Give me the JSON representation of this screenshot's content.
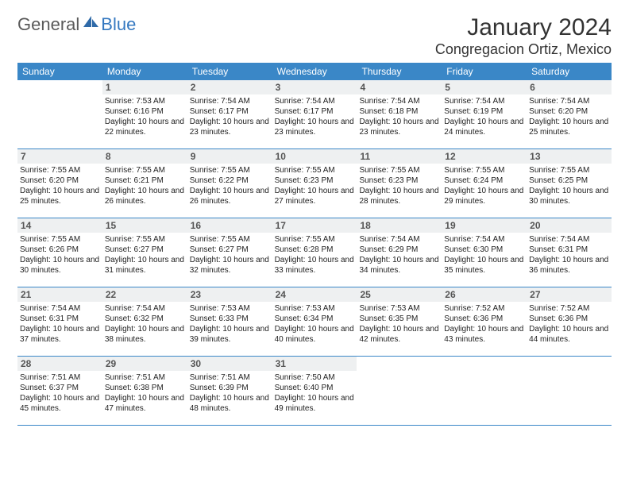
{
  "logo": {
    "general": "General",
    "blue": "Blue"
  },
  "title": "January 2024",
  "location": "Congregacion Ortiz, Mexico",
  "colors": {
    "header_blue": "#3a87c7",
    "band_gray": "#eef0f1",
    "logo_blue": "#3478c0",
    "logo_gray": "#5a5a5a"
  },
  "days_of_week": [
    "Sunday",
    "Monday",
    "Tuesday",
    "Wednesday",
    "Thursday",
    "Friday",
    "Saturday"
  ],
  "first_weekday_index": 1,
  "num_days": 31,
  "days": {
    "1": {
      "sunrise": "7:53 AM",
      "sunset": "6:16 PM",
      "daylight": "10 hours and 22 minutes."
    },
    "2": {
      "sunrise": "7:54 AM",
      "sunset": "6:17 PM",
      "daylight": "10 hours and 23 minutes."
    },
    "3": {
      "sunrise": "7:54 AM",
      "sunset": "6:17 PM",
      "daylight": "10 hours and 23 minutes."
    },
    "4": {
      "sunrise": "7:54 AM",
      "sunset": "6:18 PM",
      "daylight": "10 hours and 23 minutes."
    },
    "5": {
      "sunrise": "7:54 AM",
      "sunset": "6:19 PM",
      "daylight": "10 hours and 24 minutes."
    },
    "6": {
      "sunrise": "7:54 AM",
      "sunset": "6:20 PM",
      "daylight": "10 hours and 25 minutes."
    },
    "7": {
      "sunrise": "7:55 AM",
      "sunset": "6:20 PM",
      "daylight": "10 hours and 25 minutes."
    },
    "8": {
      "sunrise": "7:55 AM",
      "sunset": "6:21 PM",
      "daylight": "10 hours and 26 minutes."
    },
    "9": {
      "sunrise": "7:55 AM",
      "sunset": "6:22 PM",
      "daylight": "10 hours and 26 minutes."
    },
    "10": {
      "sunrise": "7:55 AM",
      "sunset": "6:23 PM",
      "daylight": "10 hours and 27 minutes."
    },
    "11": {
      "sunrise": "7:55 AM",
      "sunset": "6:23 PM",
      "daylight": "10 hours and 28 minutes."
    },
    "12": {
      "sunrise": "7:55 AM",
      "sunset": "6:24 PM",
      "daylight": "10 hours and 29 minutes."
    },
    "13": {
      "sunrise": "7:55 AM",
      "sunset": "6:25 PM",
      "daylight": "10 hours and 30 minutes."
    },
    "14": {
      "sunrise": "7:55 AM",
      "sunset": "6:26 PM",
      "daylight": "10 hours and 30 minutes."
    },
    "15": {
      "sunrise": "7:55 AM",
      "sunset": "6:27 PM",
      "daylight": "10 hours and 31 minutes."
    },
    "16": {
      "sunrise": "7:55 AM",
      "sunset": "6:27 PM",
      "daylight": "10 hours and 32 minutes."
    },
    "17": {
      "sunrise": "7:55 AM",
      "sunset": "6:28 PM",
      "daylight": "10 hours and 33 minutes."
    },
    "18": {
      "sunrise": "7:54 AM",
      "sunset": "6:29 PM",
      "daylight": "10 hours and 34 minutes."
    },
    "19": {
      "sunrise": "7:54 AM",
      "sunset": "6:30 PM",
      "daylight": "10 hours and 35 minutes."
    },
    "20": {
      "sunrise": "7:54 AM",
      "sunset": "6:31 PM",
      "daylight": "10 hours and 36 minutes."
    },
    "21": {
      "sunrise": "7:54 AM",
      "sunset": "6:31 PM",
      "daylight": "10 hours and 37 minutes."
    },
    "22": {
      "sunrise": "7:54 AM",
      "sunset": "6:32 PM",
      "daylight": "10 hours and 38 minutes."
    },
    "23": {
      "sunrise": "7:53 AM",
      "sunset": "6:33 PM",
      "daylight": "10 hours and 39 minutes."
    },
    "24": {
      "sunrise": "7:53 AM",
      "sunset": "6:34 PM",
      "daylight": "10 hours and 40 minutes."
    },
    "25": {
      "sunrise": "7:53 AM",
      "sunset": "6:35 PM",
      "daylight": "10 hours and 42 minutes."
    },
    "26": {
      "sunrise": "7:52 AM",
      "sunset": "6:36 PM",
      "daylight": "10 hours and 43 minutes."
    },
    "27": {
      "sunrise": "7:52 AM",
      "sunset": "6:36 PM",
      "daylight": "10 hours and 44 minutes."
    },
    "28": {
      "sunrise": "7:51 AM",
      "sunset": "6:37 PM",
      "daylight": "10 hours and 45 minutes."
    },
    "29": {
      "sunrise": "7:51 AM",
      "sunset": "6:38 PM",
      "daylight": "10 hours and 47 minutes."
    },
    "30": {
      "sunrise": "7:51 AM",
      "sunset": "6:39 PM",
      "daylight": "10 hours and 48 minutes."
    },
    "31": {
      "sunrise": "7:50 AM",
      "sunset": "6:40 PM",
      "daylight": "10 hours and 49 minutes."
    }
  },
  "labels": {
    "sunrise": "Sunrise:",
    "sunset": "Sunset:",
    "daylight": "Daylight:"
  }
}
